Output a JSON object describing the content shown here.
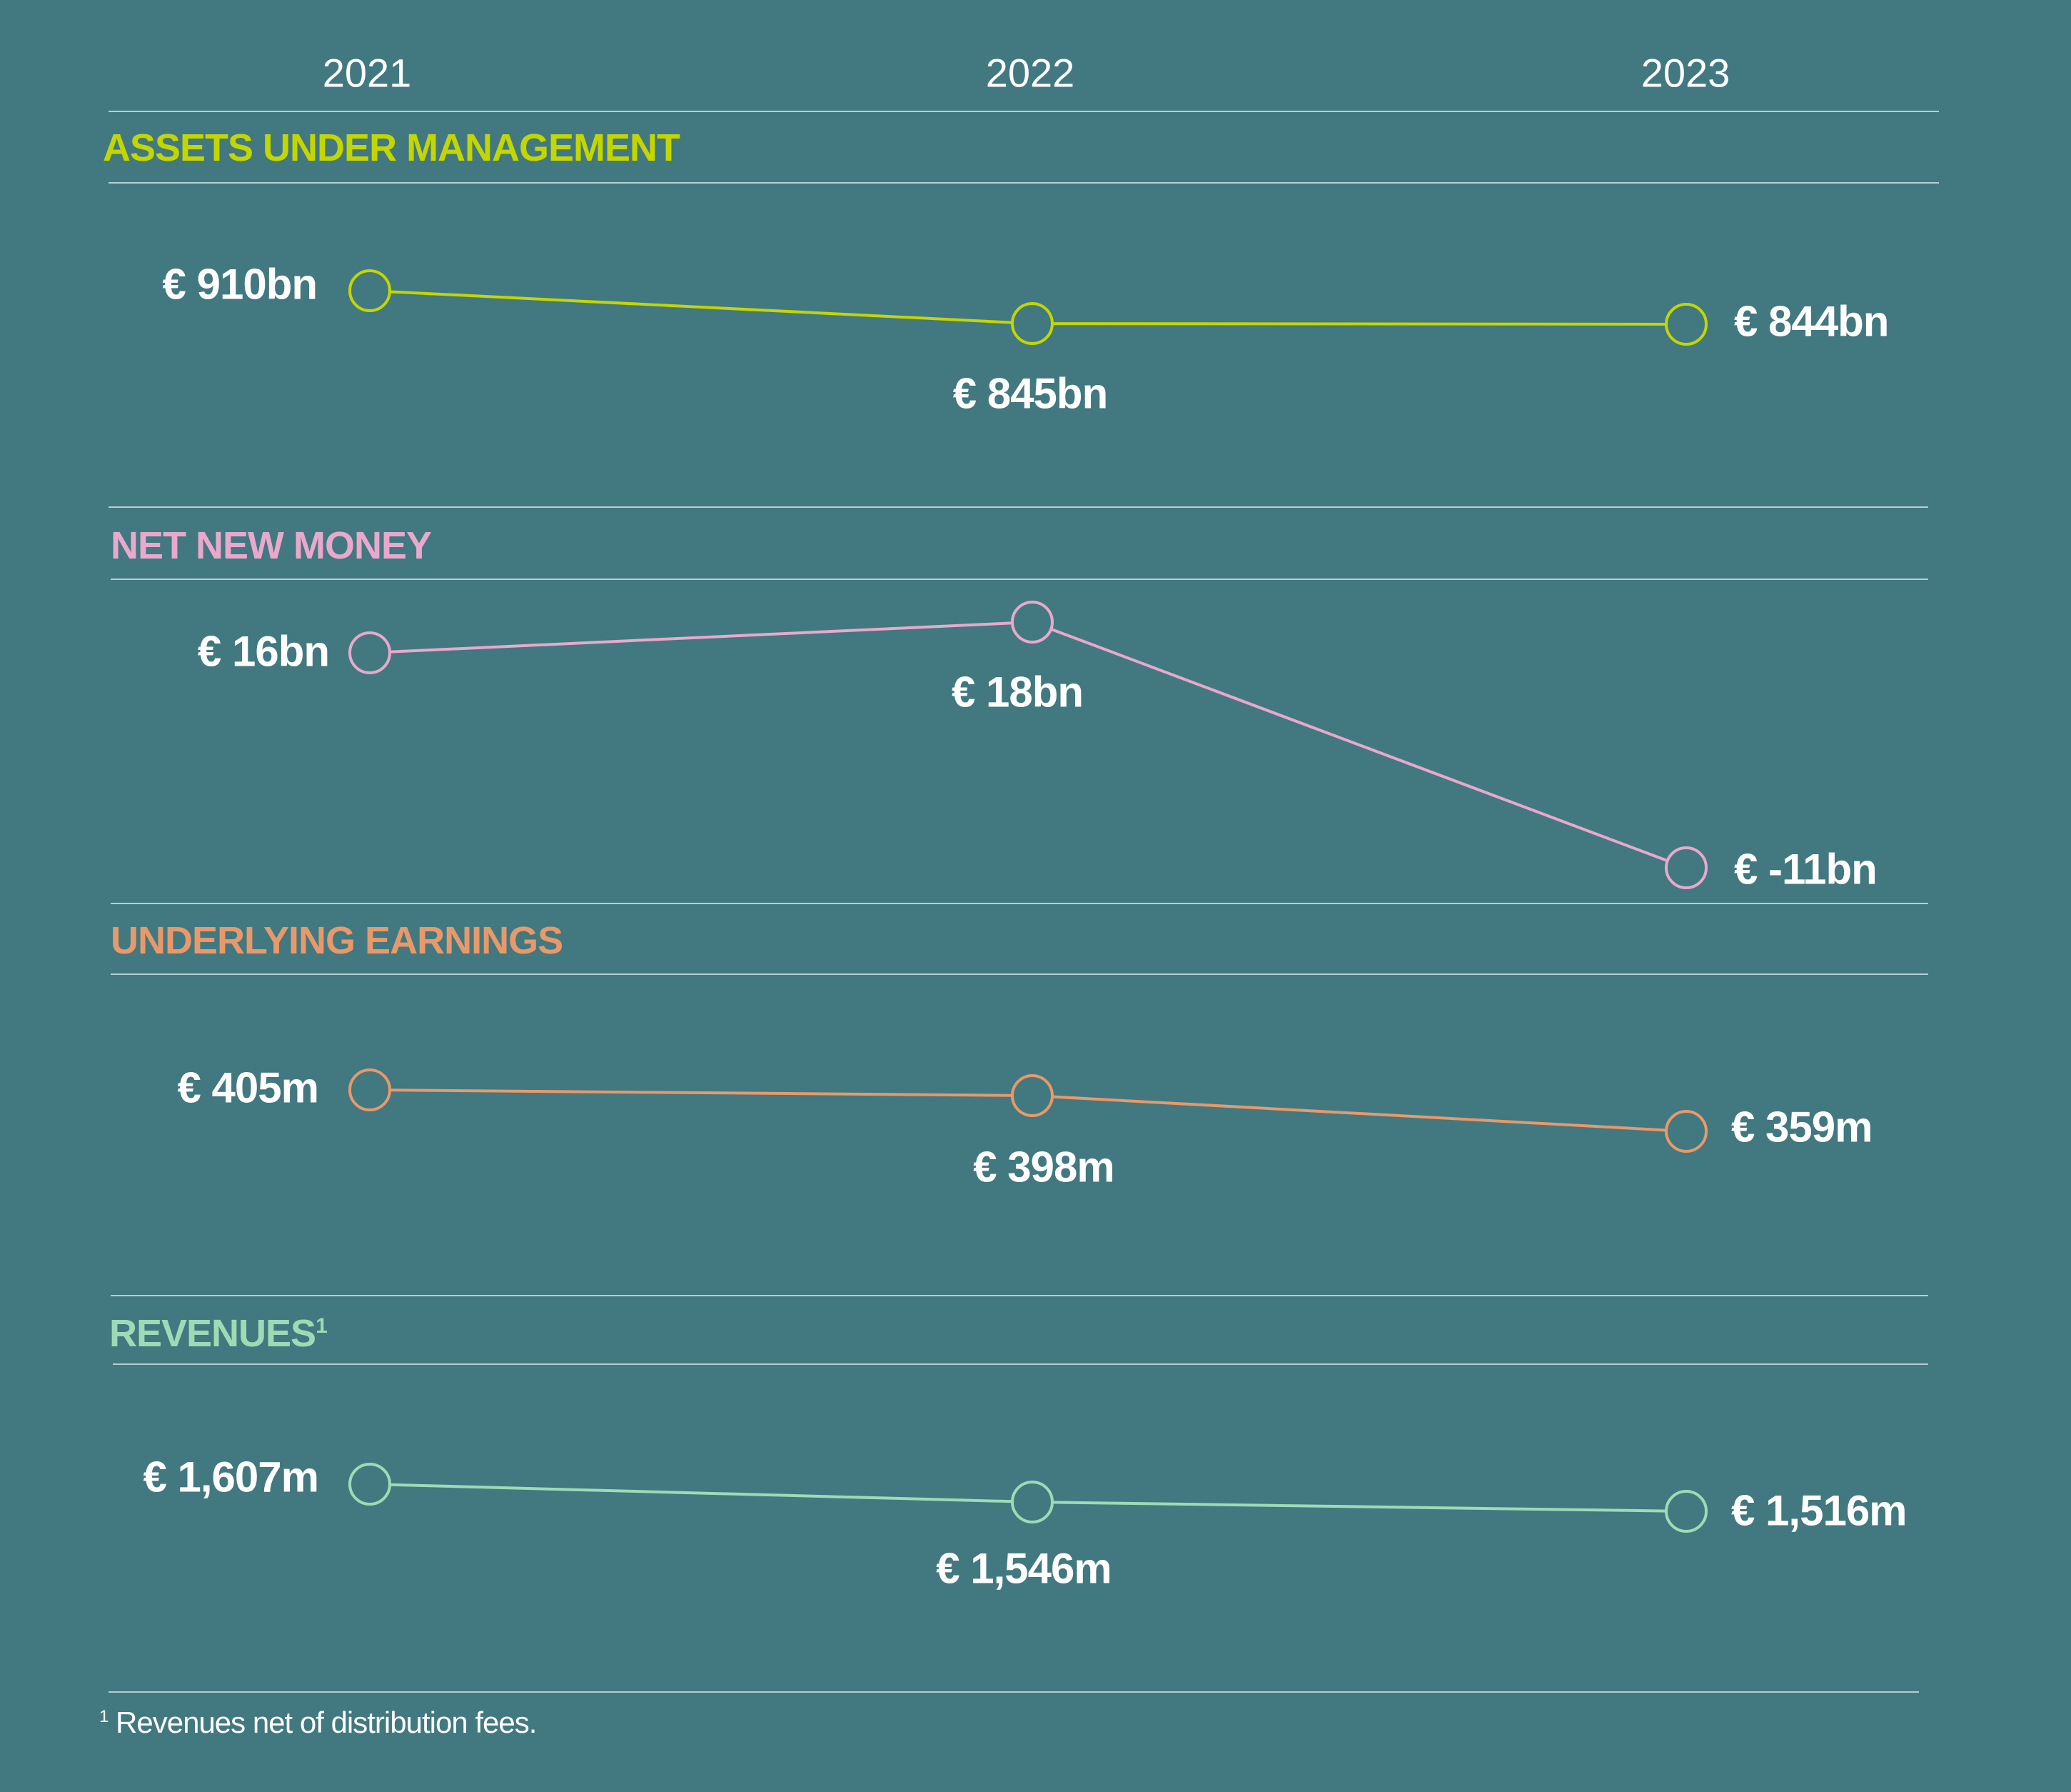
{
  "chart_data": [
    {
      "type": "line",
      "title": "ASSETS UNDER MANAGEMENT",
      "color": "#c4d600",
      "categories": [
        "2021",
        "2022",
        "2023"
      ],
      "values": [
        910,
        845,
        844
      ],
      "unit": "bn",
      "labels": [
        "€ 910bn",
        "€ 845bn",
        "€ 844bn"
      ]
    },
    {
      "type": "line",
      "title": "NET NEW MONEY",
      "color": "#e8a9cc",
      "categories": [
        "2021",
        "2022",
        "2023"
      ],
      "values": [
        16,
        18,
        -11
      ],
      "unit": "bn",
      "labels": [
        "€ 16bn",
        "€ 18bn",
        "€ -11bn"
      ]
    },
    {
      "type": "line",
      "title": "UNDERLYING EARNINGS",
      "color": "#e8996a",
      "categories": [
        "2021",
        "2022",
        "2023"
      ],
      "values": [
        405,
        398,
        359
      ],
      "unit": "m",
      "labels": [
        "€ 405m",
        "€ 398m",
        "€ 359m"
      ]
    },
    {
      "type": "line",
      "title": "REVENUES",
      "title_sup": "1",
      "color": "#9edbb5",
      "categories": [
        "2021",
        "2022",
        "2023"
      ],
      "values": [
        1607,
        1546,
        1516
      ],
      "unit": "m",
      "labels": [
        "€ 1,607m",
        "€ 1,546m",
        "€ 1,516m"
      ]
    }
  ],
  "years": [
    "2021",
    "2022",
    "2023"
  ],
  "footnote": {
    "marker": "1",
    "text": "Revenues net of distribution fees."
  },
  "colors": {
    "background": "#427880",
    "rule": "#dcebee"
  }
}
